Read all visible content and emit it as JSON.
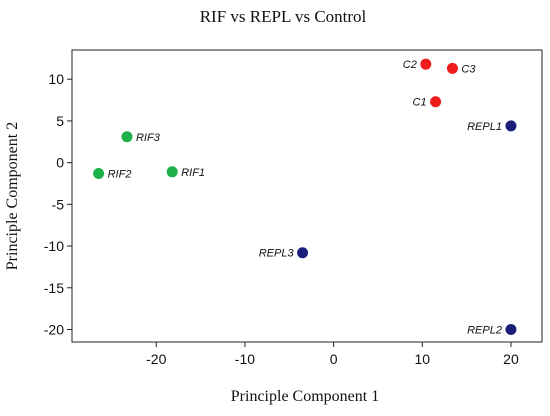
{
  "chart_data": {
    "type": "scatter",
    "title": "RIF vs REPL vs Control",
    "xlabel": "Principle Component 1",
    "ylabel": "Principle Component 2",
    "xlim": [
      -29.5,
      23.5
    ],
    "ylim": [
      -21.5,
      13.5
    ],
    "xticks": [
      -20,
      -10,
      0,
      10,
      20
    ],
    "yticks": [
      10,
      5,
      0,
      -5,
      -10,
      -15,
      -20
    ],
    "grid": false,
    "legend": "none",
    "colors": {
      "RIF": "#1db14a",
      "Control": "#ee1c1c",
      "REPL": "#1b1f7a"
    },
    "points": [
      {
        "label": "RIF3",
        "group": "RIF",
        "x": -23.3,
        "y": 3.1,
        "label_side": "right"
      },
      {
        "label": "RIF2",
        "group": "RIF",
        "x": -26.5,
        "y": -1.3,
        "label_side": "right"
      },
      {
        "label": "RIF1",
        "group": "RIF",
        "x": -18.2,
        "y": -1.1,
        "label_side": "right"
      },
      {
        "label": "C2",
        "group": "Control",
        "x": 10.4,
        "y": 11.8,
        "label_side": "left"
      },
      {
        "label": "C3",
        "group": "Control",
        "x": 13.4,
        "y": 11.3,
        "label_side": "right"
      },
      {
        "label": "C1",
        "group": "Control",
        "x": 11.5,
        "y": 7.3,
        "label_side": "left"
      },
      {
        "label": "REPL1",
        "group": "REPL",
        "x": 20.0,
        "y": 4.4,
        "label_side": "left"
      },
      {
        "label": "REPL3",
        "group": "REPL",
        "x": -3.5,
        "y": -10.8,
        "label_side": "left"
      },
      {
        "label": "REPL2",
        "group": "REPL",
        "x": 20.0,
        "y": -20.0,
        "label_side": "left"
      }
    ]
  }
}
